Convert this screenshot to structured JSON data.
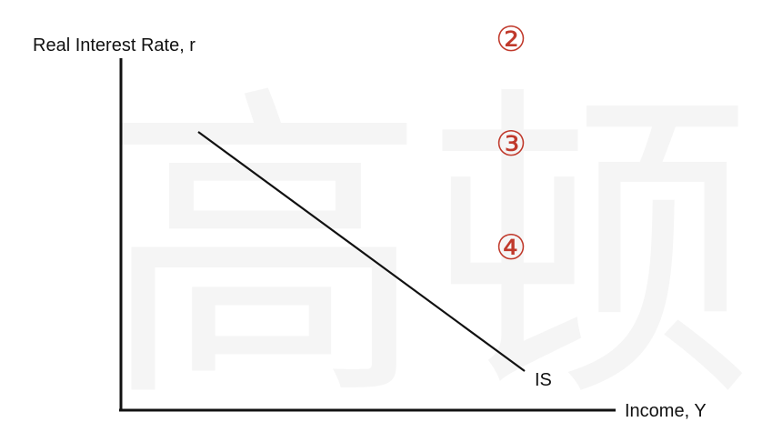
{
  "diagram": {
    "y_axis_label": "Real Interest Rate, r",
    "x_axis_label": "Income, Y",
    "curve_label": "IS",
    "markers": [
      "②",
      "③",
      "④"
    ],
    "watermark_text": "高顿",
    "colors": {
      "axis": "#111111",
      "curve": "#111111",
      "marker": "#c0392b"
    }
  }
}
